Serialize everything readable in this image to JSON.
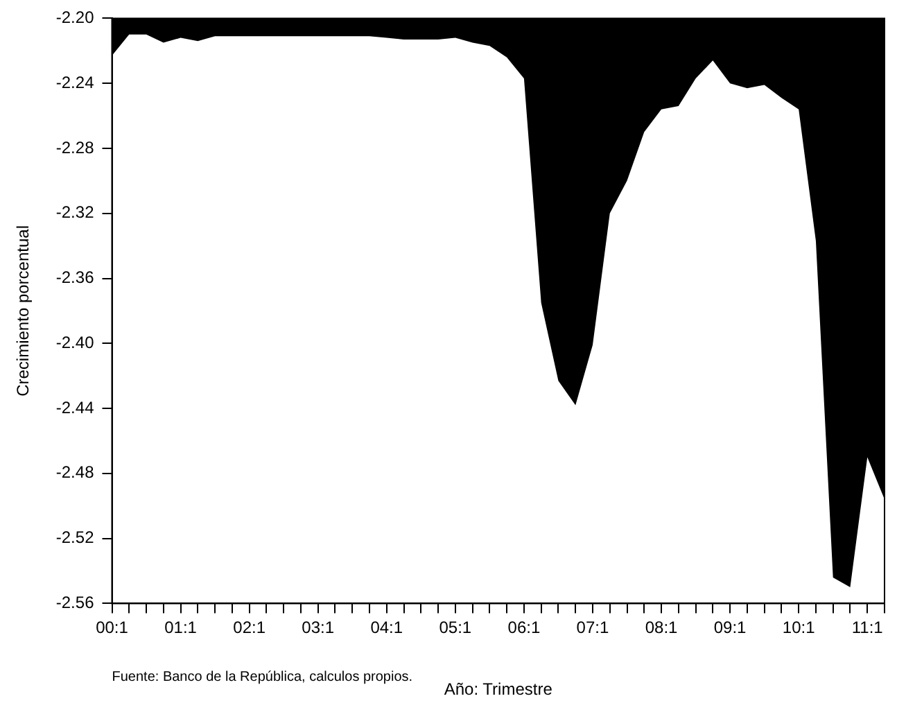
{
  "chart_data": {
    "type": "area",
    "xlabel": "Año: Trimestre",
    "ylabel": "Crecimiento porcentual",
    "annotations": [
      "Fuente: Banco de la República, calculos propios."
    ],
    "categories": [
      "00:1",
      null,
      null,
      null,
      "01:1",
      null,
      null,
      null,
      "02:1",
      null,
      null,
      null,
      "03:1",
      null,
      null,
      null,
      "04:1",
      null,
      null,
      null,
      "05:1",
      null,
      null,
      null,
      "06:1",
      null,
      null,
      null,
      "07:1",
      null,
      null,
      null,
      "08:1",
      null,
      null,
      null,
      "09:1",
      null,
      null,
      null,
      "10:1",
      null,
      null,
      null,
      "11:1",
      null
    ],
    "series": [
      {
        "color": "#000000",
        "values": [
          -2.223,
          -2.21,
          -2.21,
          -2.215,
          -2.212,
          -2.214,
          -2.211,
          -2.211,
          -2.211,
          -2.211,
          -2.211,
          -2.211,
          -2.211,
          -2.211,
          -2.211,
          -2.211,
          -2.212,
          -2.213,
          -2.213,
          -2.213,
          -2.212,
          -2.215,
          -2.217,
          -2.224,
          -2.237,
          -2.375,
          -2.423,
          -2.438,
          -2.401,
          -2.32,
          -2.3,
          -2.27,
          -2.256,
          -2.254,
          -2.237,
          -2.226,
          -2.24,
          -2.243,
          -2.241,
          -2.249,
          -2.256,
          -2.337,
          -2.544,
          -2.55,
          -2.47,
          -2.496
        ]
      }
    ],
    "ylim": [
      -2.56,
      -2.2
    ],
    "yticks": [
      {
        "value": -2.2,
        "label": "-2.20"
      },
      {
        "value": -2.24,
        "label": "-2.24"
      },
      {
        "value": -2.28,
        "label": "-2.28"
      },
      {
        "value": -2.32,
        "label": "-2.32"
      },
      {
        "value": -2.36,
        "label": "-2.36"
      },
      {
        "value": -2.4,
        "label": "-2.40"
      },
      {
        "value": -2.44,
        "label": "-2.44"
      },
      {
        "value": -2.48,
        "label": "-2.48"
      },
      {
        "value": -2.52,
        "label": "-2.52"
      },
      {
        "value": -2.56,
        "label": "-2.56"
      }
    ],
    "grid": false,
    "legend": false
  }
}
